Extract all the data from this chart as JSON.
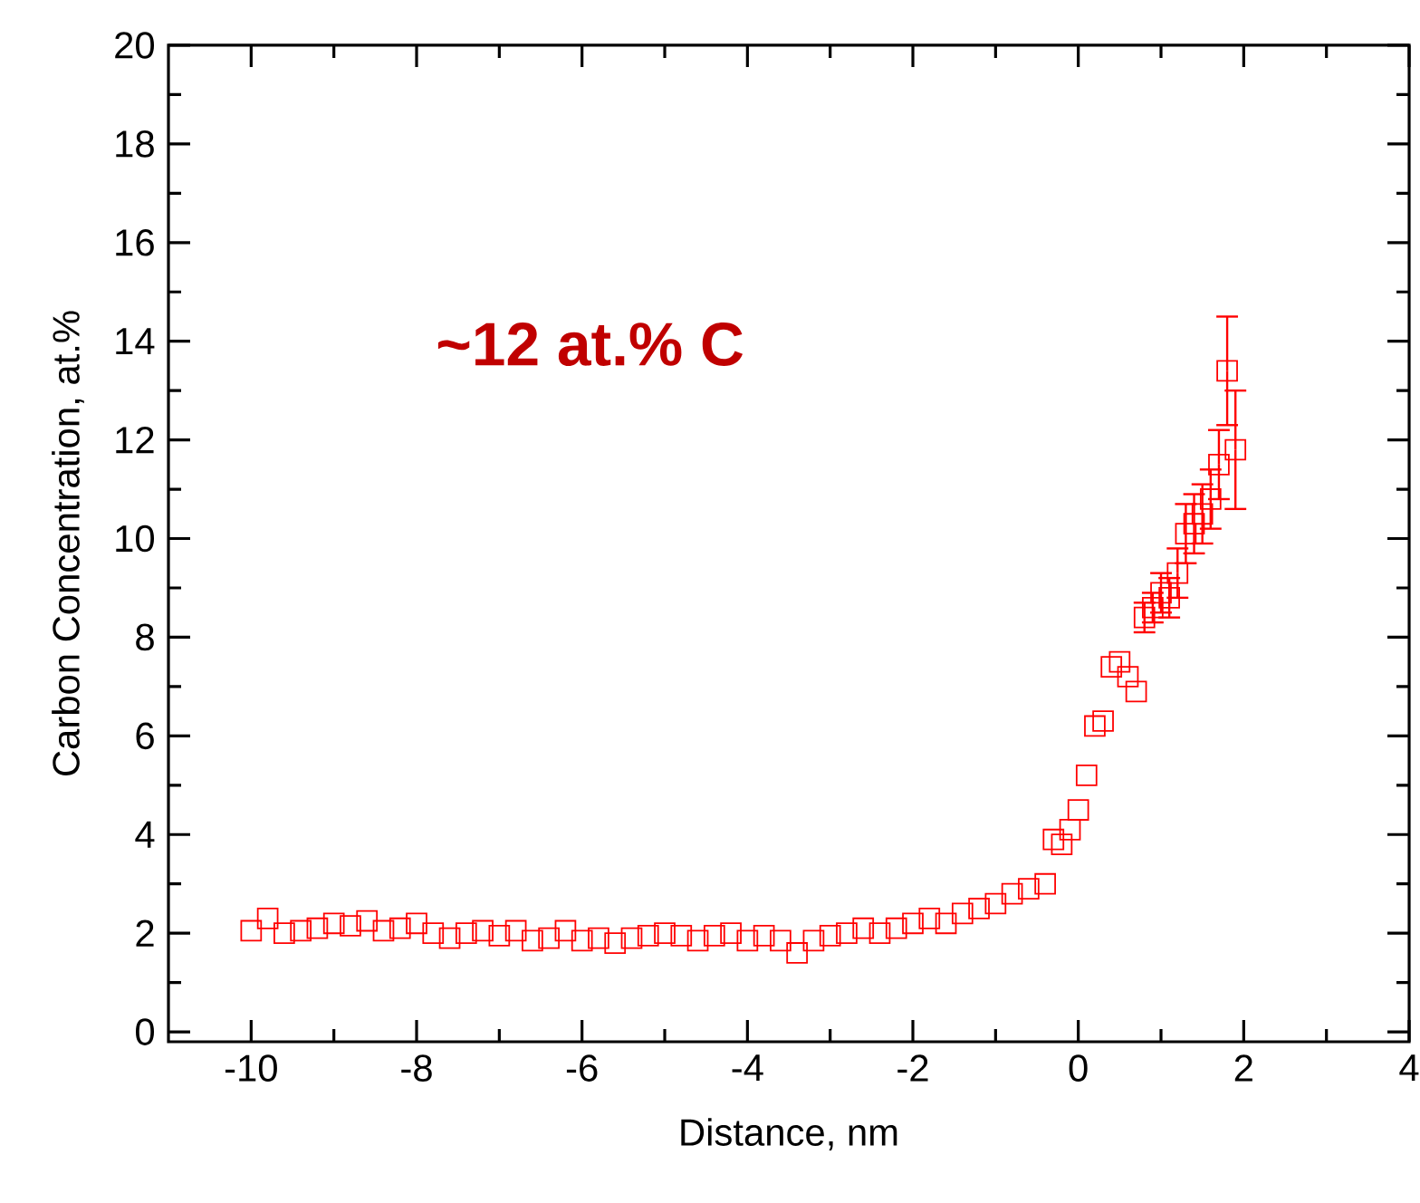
{
  "chart_data": {
    "type": "scatter",
    "xlabel": "Distance, nm",
    "ylabel": "Carbon Concentration, at.%",
    "annotations": [
      "~12 at.% C"
    ],
    "xlim": [
      -11,
      4
    ],
    "ylim": [
      -0.2,
      20
    ],
    "xticks": [
      -10,
      -8,
      -6,
      -4,
      -2,
      0,
      2,
      4
    ],
    "yticks": [
      0,
      2,
      4,
      6,
      8,
      10,
      12,
      14,
      16,
      18,
      20
    ],
    "marker": "square",
    "series": [
      {
        "color": "#ff0000",
        "x": [
          -10,
          -9.8,
          -9.6,
          -9.4,
          -9.2,
          -9.0,
          -8.8,
          -8.6,
          -8.4,
          -8.2,
          -8.0,
          -7.8,
          -7.6,
          -7.4,
          -7.2,
          -7.0,
          -6.8,
          -6.6,
          -6.4,
          -6.2,
          -6.0,
          -5.8,
          -5.6,
          -5.4,
          -5.2,
          -5.0,
          -4.8,
          -4.6,
          -4.4,
          -4.2,
          -4.0,
          -3.8,
          -3.6,
          -3.4,
          -3.2,
          -3.0,
          -2.8,
          -2.6,
          -2.4,
          -2.2,
          -2.0,
          -1.8,
          -1.6,
          -1.4,
          -1.2,
          -1.0,
          -0.8,
          -0.6,
          -0.4,
          -0.3,
          -0.2,
          -0.1,
          0.0,
          0.1,
          0.2,
          0.3,
          0.4,
          0.5,
          0.6,
          0.7,
          0.8,
          0.9,
          1.0,
          1.1,
          1.2,
          1.3,
          1.4,
          1.5,
          1.6,
          1.7,
          1.8,
          1.9
        ],
        "values": [
          2.05,
          2.3,
          2.0,
          2.05,
          2.1,
          2.2,
          2.15,
          2.25,
          2.05,
          2.1,
          2.2,
          2.0,
          1.9,
          2.0,
          2.05,
          1.95,
          2.05,
          1.85,
          1.9,
          2.05,
          1.85,
          1.9,
          1.8,
          1.9,
          1.95,
          2.0,
          1.95,
          1.85,
          1.95,
          2.0,
          1.85,
          1.95,
          1.85,
          1.6,
          1.85,
          1.95,
          2.0,
          2.1,
          2.0,
          2.1,
          2.2,
          2.3,
          2.2,
          2.4,
          2.5,
          2.6,
          2.8,
          2.9,
          3.0,
          3.9,
          3.8,
          4.1,
          4.5,
          5.2,
          6.2,
          6.3,
          7.4,
          7.5,
          7.2,
          6.9,
          8.4,
          8.6,
          8.9,
          8.8,
          9.3,
          10.1,
          10.3,
          10.5,
          10.8,
          11.5,
          13.4,
          11.8
        ],
        "errors": [
          null,
          null,
          null,
          null,
          null,
          null,
          null,
          null,
          null,
          null,
          null,
          null,
          null,
          null,
          null,
          null,
          null,
          null,
          null,
          null,
          null,
          null,
          null,
          null,
          null,
          null,
          null,
          null,
          null,
          null,
          null,
          null,
          null,
          null,
          null,
          null,
          null,
          null,
          null,
          null,
          null,
          null,
          null,
          null,
          null,
          null,
          null,
          null,
          null,
          null,
          null,
          null,
          null,
          null,
          null,
          null,
          null,
          null,
          null,
          null,
          0.3,
          0.3,
          0.4,
          0.4,
          0.5,
          0.6,
          0.6,
          0.6,
          0.6,
          0.7,
          1.1,
          1.2
        ]
      }
    ]
  }
}
